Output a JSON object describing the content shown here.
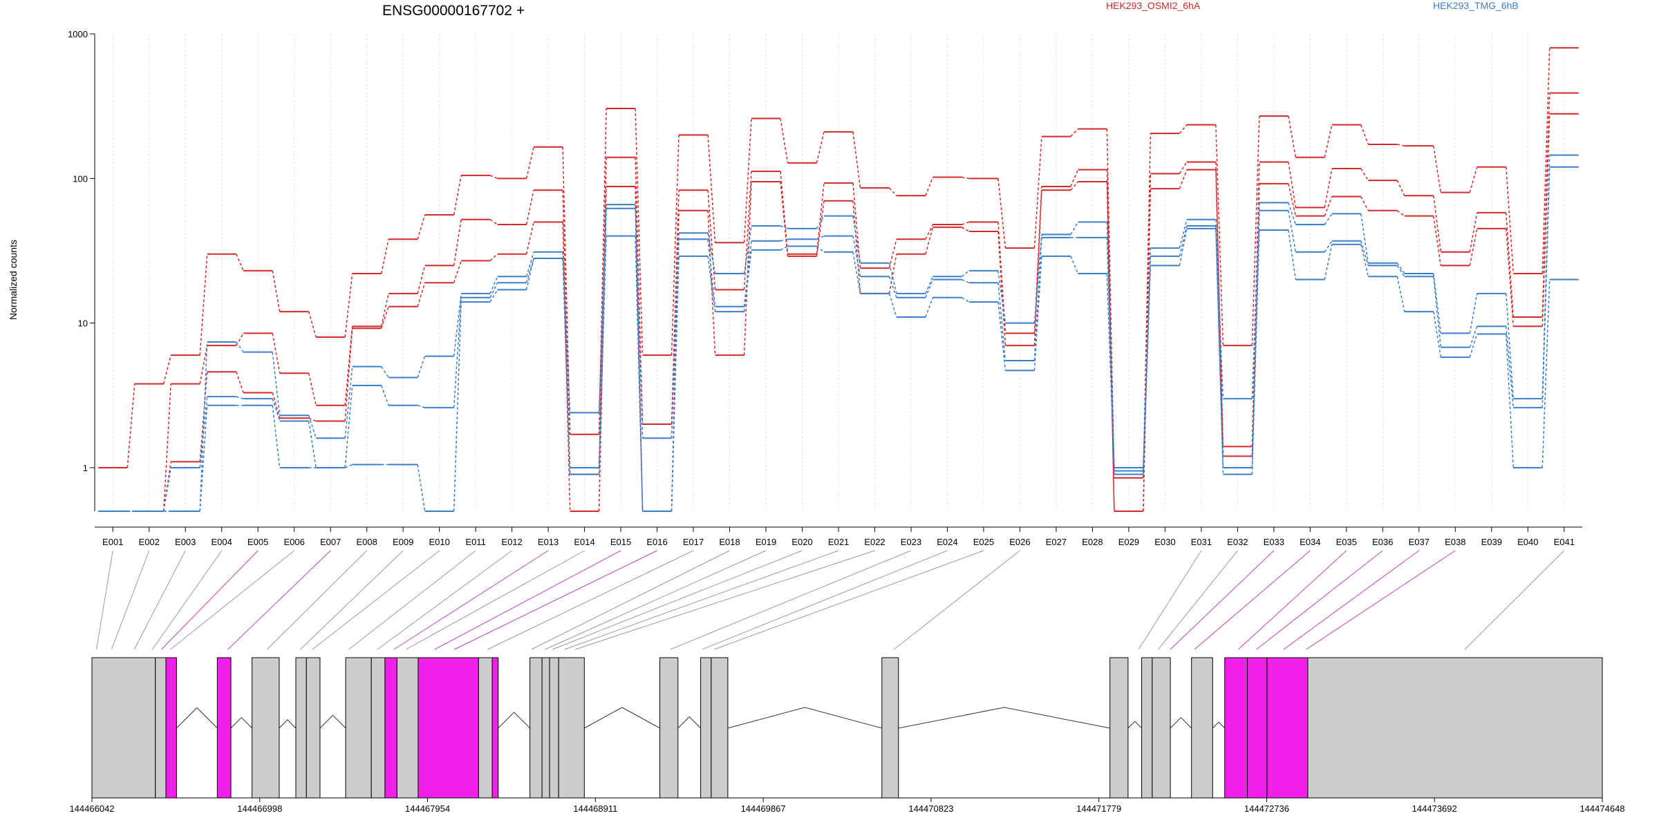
{
  "title": "ENSG00000167702 +",
  "ylabel": "Normalized counts",
  "legend": [
    {
      "label": "HEK293_OSMI2_6hA",
      "color": "#d62728"
    },
    {
      "label": "HEK293_TMG_6hB",
      "color": "#3a7dc9"
    }
  ],
  "chart_data": {
    "type": "line",
    "xlabel": "",
    "ylabel": "Normalized counts",
    "yscale": "log",
    "ylim": [
      0.5,
      1000
    ],
    "yticks": [
      "1",
      "10",
      "100",
      "1000"
    ],
    "categories": [
      "E001",
      "E002",
      "E003",
      "E004",
      "E005",
      "E006",
      "E007",
      "E008",
      "E009",
      "E010",
      "E011",
      "E012",
      "E013",
      "E014",
      "E015",
      "E016",
      "E017",
      "E018",
      "E019",
      "E020",
      "E021",
      "E022",
      "E023",
      "E024",
      "E025",
      "E026",
      "E027",
      "E028",
      "E029",
      "E030",
      "E031",
      "E032",
      "E033",
      "E034",
      "E035",
      "E036",
      "E037",
      "E038",
      "E039",
      "E040",
      "E041"
    ],
    "series": [
      {
        "group": "HEK293_OSMI2_6hA",
        "color": "#d62728",
        "values": [
          1.0,
          3.8,
          6.0,
          30,
          23,
          12,
          8.0,
          22,
          38,
          56,
          105,
          100,
          165,
          1.7,
          305,
          6.0,
          200,
          36,
          260,
          128,
          210,
          86,
          76,
          102,
          100,
          33,
          195,
          220,
          0.85,
          205,
          235,
          7.0,
          270,
          140,
          235,
          172,
          168,
          80,
          120,
          22,
          800
        ]
      },
      {
        "group": "HEK293_OSMI2_6hA",
        "color": "#d62728",
        "values": [
          0.5,
          0.5,
          3.8,
          7.0,
          8.5,
          4.5,
          2.7,
          9.5,
          16,
          25,
          52,
          48,
          83,
          0.9,
          140,
          2.0,
          83,
          17,
          112,
          30,
          93,
          24,
          38,
          48,
          50,
          8.5,
          88,
          115,
          0.5,
          108,
          130,
          1.4,
          130,
          63,
          117,
          97,
          76,
          31,
          58,
          11,
          390
        ]
      },
      {
        "group": "HEK293_OSMI2_6hA",
        "color": "#d62728",
        "values": [
          0.5,
          0.5,
          1.1,
          4.6,
          3.3,
          2.2,
          2.1,
          9.2,
          13,
          19,
          27,
          30,
          50,
          0.5,
          88,
          0.5,
          60,
          6.0,
          95,
          29,
          70,
          16,
          30,
          46,
          43,
          7.0,
          83,
          95,
          0.5,
          85,
          115,
          1.2,
          92,
          55,
          75,
          60,
          55,
          25,
          45,
          9.5,
          280
        ]
      },
      {
        "group": "HEK293_TMG_6hB",
        "color": "#3a7dc9",
        "values": [
          0.5,
          0.5,
          0.5,
          7.4,
          6.3,
          2.3,
          1.6,
          5.0,
          4.2,
          5.9,
          16,
          21,
          31,
          2.4,
          66,
          1.6,
          42,
          22,
          47,
          45,
          55,
          26,
          16,
          21,
          23,
          10,
          41,
          50,
          1.0,
          33,
          52,
          3.0,
          68,
          48,
          57,
          26,
          22,
          8.5,
          16,
          3.0,
          145
        ]
      },
      {
        "group": "HEK293_TMG_6hB",
        "color": "#3a7dc9",
        "values": [
          0.5,
          0.5,
          1.0,
          3.1,
          3.0,
          2.1,
          1.0,
          3.7,
          2.7,
          2.6,
          15,
          19,
          28,
          1.0,
          62,
          0.5,
          38,
          13,
          37,
          38,
          40,
          21,
          15,
          20,
          19,
          5.5,
          39,
          39,
          0.95,
          29,
          47,
          1.0,
          60,
          31,
          37,
          25,
          21,
          6.8,
          9.5,
          2.6,
          120
        ]
      },
      {
        "group": "HEK293_TMG_6hB",
        "color": "#3a7dc9",
        "values": [
          0.5,
          0.5,
          0.5,
          2.7,
          2.7,
          1.0,
          1.0,
          1.05,
          1.05,
          0.5,
          14,
          17,
          28,
          0.9,
          40,
          0.5,
          29,
          12,
          32,
          34,
          31,
          16,
          11,
          15,
          14,
          4.7,
          29,
          22,
          0.9,
          25,
          45,
          0.9,
          44,
          20,
          35,
          21,
          12,
          5.8,
          8.4,
          1.0,
          20
        ]
      }
    ]
  },
  "gene_model": {
    "ticks": [
      "144466042",
      "144466998",
      "144467954",
      "144468911",
      "144469867",
      "144470823",
      "144471779",
      "144472736",
      "144473692",
      "144474648"
    ],
    "exon_colors": {
      "normal": "#cccccc",
      "significant": "#f020e8"
    },
    "exon_significant": [
      false,
      false,
      false,
      false,
      true,
      false,
      true,
      false,
      false,
      false,
      false,
      false,
      true,
      false,
      true,
      true,
      false,
      false,
      false,
      false,
      false,
      false,
      false,
      false,
      false,
      false,
      false,
      false,
      false,
      false,
      false,
      false,
      true,
      true,
      true,
      true,
      true,
      true,
      true,
      false,
      false
    ]
  }
}
